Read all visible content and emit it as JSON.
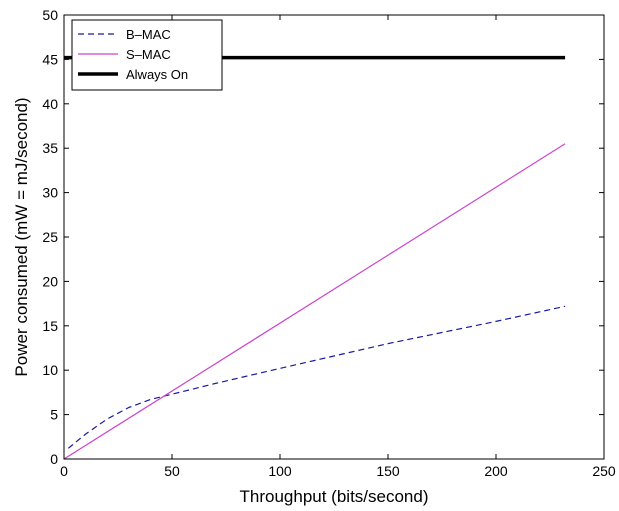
{
  "chart_data": {
    "type": "line",
    "title": "",
    "xlabel": "Throughput (bits/second)",
    "ylabel": "Power consumed (mW = mJ/second)",
    "xlim": [
      0,
      250
    ],
    "ylim": [
      0,
      50
    ],
    "xticks": [
      0,
      50,
      100,
      150,
      200,
      250
    ],
    "yticks": [
      0,
      5,
      10,
      15,
      20,
      25,
      30,
      35,
      40,
      45,
      50
    ],
    "grid": false,
    "legend_position": "top-left",
    "series": [
      {
        "name": "B–MAC",
        "color": "#1a1a9e",
        "style": "dashed",
        "points": [
          [
            2,
            1.2
          ],
          [
            10,
            2.8
          ],
          [
            20,
            4.5
          ],
          [
            30,
            5.8
          ],
          [
            40,
            6.7
          ],
          [
            50,
            7.3
          ],
          [
            70,
            8.5
          ],
          [
            100,
            10.2
          ],
          [
            150,
            13.0
          ],
          [
            200,
            15.5
          ],
          [
            232,
            17.2
          ]
        ]
      },
      {
        "name": "S–MAC",
        "color": "#cc44cc",
        "style": "solid",
        "points": [
          [
            0,
            0
          ],
          [
            232,
            35.5
          ]
        ]
      },
      {
        "name": "Always On",
        "color": "#000000",
        "style": "thick",
        "points": [
          [
            0,
            45.2
          ],
          [
            232,
            45.2
          ]
        ]
      }
    ]
  }
}
